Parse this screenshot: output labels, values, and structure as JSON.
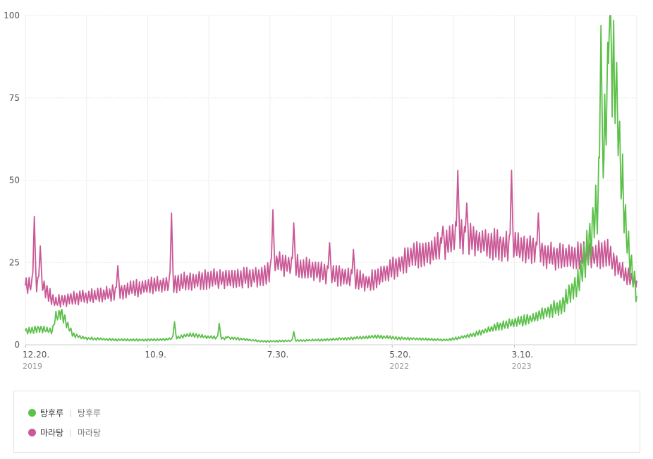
{
  "chart_data": {
    "type": "line",
    "ylim": [
      0,
      100
    ],
    "y_ticks": [
      "0",
      "25",
      "50",
      "75",
      "100"
    ],
    "x_ticks": [
      {
        "label": "12.20.",
        "sub": "2019"
      },
      {
        "label": "10.9.",
        "sub": ""
      },
      {
        "label": "7.30.",
        "sub": ""
      },
      {
        "label": "5.20.",
        "sub": "2022"
      },
      {
        "label": "3.10.",
        "sub": "2023"
      }
    ],
    "grid": true,
    "x_range_weeks": [
      0,
      205
    ],
    "series": [
      {
        "name": "탕후루",
        "color": "#5cc04a",
        "keypoints": [
          [
            0,
            4
          ],
          [
            5,
            5
          ],
          [
            9,
            4
          ],
          [
            10,
            8
          ],
          [
            12,
            10
          ],
          [
            14,
            6
          ],
          [
            16,
            3
          ],
          [
            20,
            2
          ],
          [
            30,
            1.5
          ],
          [
            45,
            1.5
          ],
          [
            50,
            2
          ],
          [
            55,
            3
          ],
          [
            65,
            2
          ],
          [
            70,
            2
          ],
          [
            80,
            1
          ],
          [
            100,
            1.5
          ],
          [
            110,
            2
          ],
          [
            118,
            2.5
          ],
          [
            125,
            2
          ],
          [
            140,
            1.5
          ],
          [
            142,
            1.5
          ],
          [
            145,
            2
          ],
          [
            150,
            3
          ],
          [
            160,
            6
          ],
          [
            170,
            8
          ],
          [
            180,
            12
          ],
          [
            186,
            20
          ],
          [
            188,
            28
          ],
          [
            190,
            35
          ],
          [
            192,
            45
          ],
          [
            194,
            60
          ],
          [
            196,
            90
          ],
          [
            198,
            75
          ],
          [
            200,
            50
          ],
          [
            202,
            30
          ],
          [
            205,
            15
          ]
        ]
      },
      {
        "name": "마라탕",
        "color": "#c95896",
        "keypoints": [
          [
            0,
            18
          ],
          [
            5,
            19
          ],
          [
            8,
            15
          ],
          [
            10,
            13
          ],
          [
            15,
            14
          ],
          [
            25,
            15
          ],
          [
            35,
            17
          ],
          [
            45,
            18
          ],
          [
            60,
            20
          ],
          [
            70,
            20
          ],
          [
            80,
            21
          ],
          [
            84,
            25
          ],
          [
            90,
            24
          ],
          [
            100,
            22
          ],
          [
            110,
            20
          ],
          [
            115,
            19
          ],
          [
            125,
            24
          ],
          [
            130,
            27
          ],
          [
            140,
            30
          ],
          [
            145,
            33
          ],
          [
            150,
            32
          ],
          [
            160,
            30
          ],
          [
            170,
            29
          ],
          [
            175,
            27
          ],
          [
            180,
            27
          ],
          [
            190,
            27
          ],
          [
            195,
            28
          ],
          [
            200,
            22
          ],
          [
            205,
            19
          ]
        ]
      }
    ],
    "spikes": [
      {
        "series": 1,
        "x": 3,
        "y": 39
      },
      {
        "series": 1,
        "x": 5,
        "y": 30
      },
      {
        "series": 1,
        "x": 31,
        "y": 24
      },
      {
        "series": 1,
        "x": 49,
        "y": 40
      },
      {
        "series": 1,
        "x": 83,
        "y": 41
      },
      {
        "series": 1,
        "x": 90,
        "y": 37
      },
      {
        "series": 1,
        "x": 102,
        "y": 31
      },
      {
        "series": 1,
        "x": 110,
        "y": 29
      },
      {
        "series": 1,
        "x": 140,
        "y": 36
      },
      {
        "series": 1,
        "x": 145,
        "y": 53
      },
      {
        "series": 1,
        "x": 148,
        "y": 43
      },
      {
        "series": 1,
        "x": 163,
        "y": 53
      },
      {
        "series": 1,
        "x": 172,
        "y": 40
      },
      {
        "series": 0,
        "x": 50,
        "y": 7
      },
      {
        "series": 0,
        "x": 65,
        "y": 6.5
      },
      {
        "series": 0,
        "x": 68,
        "y": 2.5
      },
      {
        "series": 0,
        "x": 90,
        "y": 4
      },
      {
        "series": 0,
        "x": 193,
        "y": 97
      },
      {
        "series": 0,
        "x": 196,
        "y": 100
      },
      {
        "series": 0,
        "x": 200,
        "y": 38
      }
    ]
  },
  "legend": [
    {
      "name": "탕후루",
      "sub": "탕후루",
      "color": "#5cc04a"
    },
    {
      "name": "마라탕",
      "sub": "마라탕",
      "color": "#c95896"
    }
  ]
}
